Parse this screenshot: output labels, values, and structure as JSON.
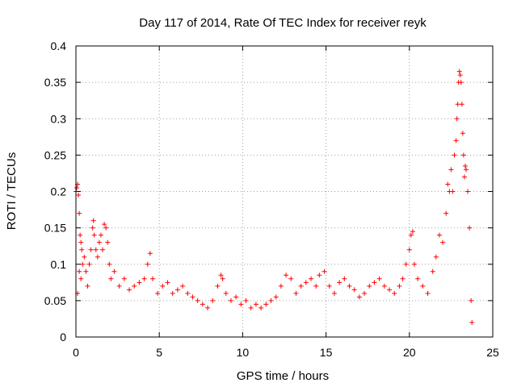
{
  "chart_data": {
    "type": "scatter",
    "title": "Day 117 of 2014, Rate Of TEC Index for receiver reyk",
    "xlabel": "GPS time / hours",
    "ylabel": "ROTI / TECUs",
    "xlim": [
      0,
      25
    ],
    "ylim": [
      0,
      0.4
    ],
    "grid": true,
    "marker": "+",
    "color": "#ff0000",
    "x_ticks": [
      0,
      5,
      10,
      15,
      20,
      25
    ],
    "x_tick_labels": [
      "0",
      "5",
      "10",
      "15",
      "20",
      "25"
    ],
    "y_ticks": [
      0,
      0.05,
      0.1,
      0.15,
      0.2,
      0.25,
      0.3,
      0.35,
      0.4
    ],
    "y_tick_labels": [
      "0",
      "0.05",
      "0.1",
      "0.15",
      "0.2",
      "0.25",
      "0.3",
      "0.35",
      "0.4"
    ],
    "series": [
      {
        "name": "ROTI",
        "points": [
          [
            0.0,
            0.2
          ],
          [
            0.05,
            0.205
          ],
          [
            0.1,
            0.21
          ],
          [
            0.15,
            0.195
          ],
          [
            0.2,
            0.17
          ],
          [
            0.25,
            0.14
          ],
          [
            0.3,
            0.13
          ],
          [
            0.35,
            0.12
          ],
          [
            0.4,
            0.1
          ],
          [
            0.1,
            0.06
          ],
          [
            0.2,
            0.09
          ],
          [
            0.3,
            0.08
          ],
          [
            0.5,
            0.11
          ],
          [
            0.6,
            0.09
          ],
          [
            0.7,
            0.07
          ],
          [
            0.8,
            0.1
          ],
          [
            0.9,
            0.12
          ],
          [
            1.0,
            0.15
          ],
          [
            1.05,
            0.16
          ],
          [
            1.1,
            0.14
          ],
          [
            1.2,
            0.12
          ],
          [
            1.3,
            0.11
          ],
          [
            1.4,
            0.13
          ],
          [
            1.5,
            0.14
          ],
          [
            1.6,
            0.12
          ],
          [
            1.7,
            0.155
          ],
          [
            1.8,
            0.15
          ],
          [
            1.9,
            0.13
          ],
          [
            2.0,
            0.1
          ],
          [
            2.1,
            0.08
          ],
          [
            2.3,
            0.09
          ],
          [
            2.6,
            0.07
          ],
          [
            2.9,
            0.08
          ],
          [
            3.2,
            0.065
          ],
          [
            3.5,
            0.07
          ],
          [
            3.8,
            0.075
          ],
          [
            4.1,
            0.08
          ],
          [
            4.3,
            0.1
          ],
          [
            4.45,
            0.115
          ],
          [
            4.6,
            0.08
          ],
          [
            4.9,
            0.06
          ],
          [
            5.2,
            0.07
          ],
          [
            5.5,
            0.075
          ],
          [
            5.8,
            0.06
          ],
          [
            6.1,
            0.065
          ],
          [
            6.4,
            0.07
          ],
          [
            6.7,
            0.06
          ],
          [
            7.0,
            0.055
          ],
          [
            7.3,
            0.05
          ],
          [
            7.6,
            0.045
          ],
          [
            7.9,
            0.04
          ],
          [
            8.2,
            0.05
          ],
          [
            8.5,
            0.07
          ],
          [
            8.7,
            0.085
          ],
          [
            8.8,
            0.08
          ],
          [
            9.0,
            0.06
          ],
          [
            9.3,
            0.05
          ],
          [
            9.6,
            0.055
          ],
          [
            9.9,
            0.045
          ],
          [
            10.2,
            0.05
          ],
          [
            10.5,
            0.04
          ],
          [
            10.8,
            0.045
          ],
          [
            11.1,
            0.04
          ],
          [
            11.4,
            0.045
          ],
          [
            11.7,
            0.05
          ],
          [
            12.0,
            0.055
          ],
          [
            12.3,
            0.07
          ],
          [
            12.6,
            0.085
          ],
          [
            12.9,
            0.08
          ],
          [
            13.2,
            0.06
          ],
          [
            13.5,
            0.07
          ],
          [
            13.8,
            0.075
          ],
          [
            14.1,
            0.08
          ],
          [
            14.4,
            0.07
          ],
          [
            14.6,
            0.085
          ],
          [
            14.9,
            0.09
          ],
          [
            15.2,
            0.07
          ],
          [
            15.5,
            0.06
          ],
          [
            15.8,
            0.075
          ],
          [
            16.1,
            0.08
          ],
          [
            16.4,
            0.07
          ],
          [
            16.7,
            0.065
          ],
          [
            17.0,
            0.055
          ],
          [
            17.3,
            0.06
          ],
          [
            17.6,
            0.07
          ],
          [
            17.9,
            0.075
          ],
          [
            18.2,
            0.08
          ],
          [
            18.5,
            0.07
          ],
          [
            18.8,
            0.065
          ],
          [
            19.1,
            0.06
          ],
          [
            19.4,
            0.07
          ],
          [
            19.6,
            0.08
          ],
          [
            19.8,
            0.1
          ],
          [
            20.0,
            0.12
          ],
          [
            20.1,
            0.14
          ],
          [
            20.2,
            0.145
          ],
          [
            20.3,
            0.1
          ],
          [
            20.5,
            0.08
          ],
          [
            20.8,
            0.07
          ],
          [
            21.1,
            0.06
          ],
          [
            21.4,
            0.09
          ],
          [
            21.6,
            0.11
          ],
          [
            21.8,
            0.14
          ],
          [
            22.0,
            0.13
          ],
          [
            22.2,
            0.17
          ],
          [
            22.3,
            0.21
          ],
          [
            22.4,
            0.2
          ],
          [
            22.5,
            0.23
          ],
          [
            22.6,
            0.2
          ],
          [
            22.7,
            0.25
          ],
          [
            22.8,
            0.27
          ],
          [
            22.85,
            0.3
          ],
          [
            22.9,
            0.32
          ],
          [
            22.95,
            0.35
          ],
          [
            23.0,
            0.365
          ],
          [
            23.05,
            0.36
          ],
          [
            23.1,
            0.35
          ],
          [
            23.15,
            0.32
          ],
          [
            23.2,
            0.28
          ],
          [
            23.25,
            0.25
          ],
          [
            23.3,
            0.22
          ],
          [
            23.35,
            0.235
          ],
          [
            23.4,
            0.23
          ],
          [
            23.5,
            0.2
          ],
          [
            23.6,
            0.15
          ],
          [
            23.7,
            0.05
          ],
          [
            23.75,
            0.02
          ]
        ]
      }
    ]
  }
}
